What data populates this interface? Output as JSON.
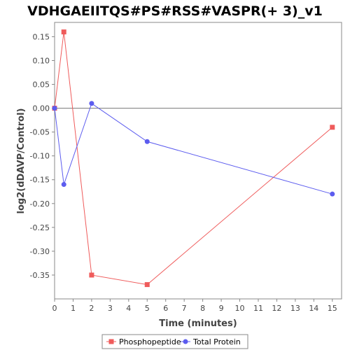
{
  "chart_data": {
    "type": "line",
    "title": "VDHGAEIITQS#PS#RSS#VASPR(+ 3)_v1",
    "xlabel": "Time (minutes)",
    "ylabel": "log2(dDAVP/Control)",
    "xlim": [
      0,
      15.5
    ],
    "ylim": [
      -0.4,
      0.18
    ],
    "x_ticks": [
      "0",
      "1",
      "2",
      "3",
      "4",
      "5",
      "6",
      "7",
      "8",
      "9",
      "10",
      "11",
      "12",
      "13",
      "14",
      "15"
    ],
    "y_ticks": [
      "0.15",
      "0.10",
      "0.05",
      "0.00",
      "-0.05",
      "-0.10",
      "-0.15",
      "-0.20",
      "-0.25",
      "-0.30",
      "-0.35"
    ],
    "zero_line": true,
    "legend_position": "bottom",
    "series": [
      {
        "name": "Phosphopeptide",
        "color": "#ef5b5b",
        "marker": "square",
        "x": [
          0,
          0.5,
          2,
          5,
          15
        ],
        "y": [
          0.0,
          0.16,
          -0.35,
          -0.37,
          -0.04
        ]
      },
      {
        "name": "Total Protein",
        "color": "#5c5cef",
        "marker": "circle",
        "x": [
          0,
          0.5,
          2,
          5,
          15
        ],
        "y": [
          0.0,
          -0.16,
          0.01,
          -0.07,
          -0.18
        ]
      }
    ]
  }
}
